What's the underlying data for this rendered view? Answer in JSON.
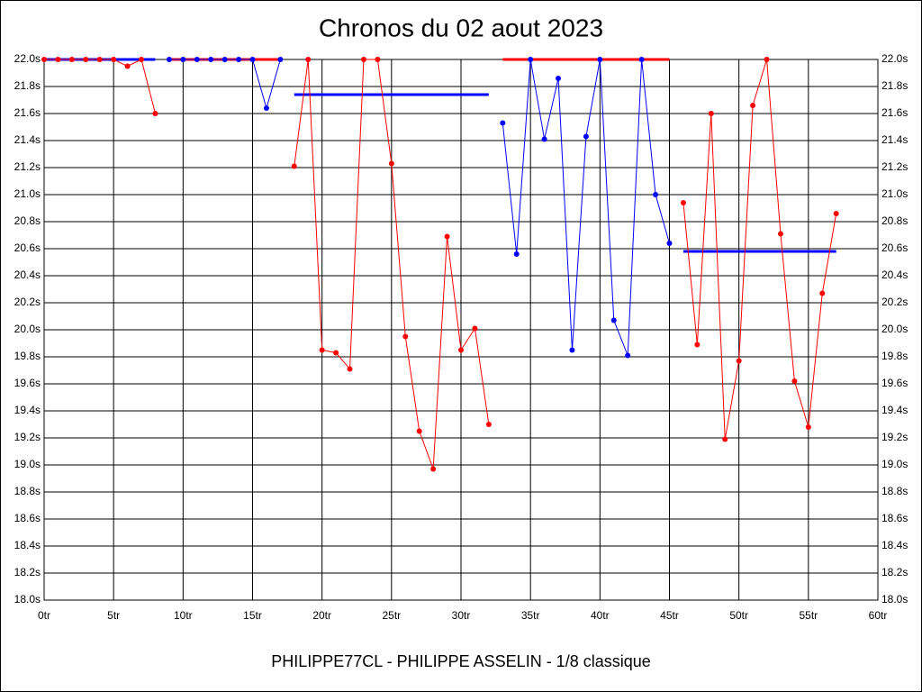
{
  "chart_data": {
    "type": "line",
    "title": "Chronos du 02 aout 2023",
    "x_label": "PHILIPPE77CL - PHILIPPE ASSELIN - 1/8 classique",
    "xlim": [
      0,
      60
    ],
    "xticks": [
      {
        "value": 0,
        "label": "0tr"
      },
      {
        "value": 5,
        "label": "5tr"
      },
      {
        "value": 10,
        "label": "10tr"
      },
      {
        "value": 15,
        "label": "15tr"
      },
      {
        "value": 20,
        "label": "20tr"
      },
      {
        "value": 25,
        "label": "25tr"
      },
      {
        "value": 30,
        "label": "30tr"
      },
      {
        "value": 35,
        "label": "35tr"
      },
      {
        "value": 40,
        "label": "40tr"
      },
      {
        "value": 45,
        "label": "45tr"
      },
      {
        "value": 50,
        "label": "50tr"
      },
      {
        "value": 55,
        "label": "55tr"
      },
      {
        "value": 60,
        "label": "60tr"
      }
    ],
    "ylim": [
      18.0,
      22.0
    ],
    "yticks": [
      {
        "value": 18.0,
        "label": "18.0s"
      },
      {
        "value": 18.2,
        "label": "18.2s"
      },
      {
        "value": 18.4,
        "label": "18.4s"
      },
      {
        "value": 18.6,
        "label": "18.6s"
      },
      {
        "value": 18.8,
        "label": "18.8s"
      },
      {
        "value": 19.0,
        "label": "19.0s"
      },
      {
        "value": 19.2,
        "label": "19.2s"
      },
      {
        "value": 19.4,
        "label": "19.4s"
      },
      {
        "value": 19.6,
        "label": "19.6s"
      },
      {
        "value": 19.8,
        "label": "19.8s"
      },
      {
        "value": 20.0,
        "label": "20.0s"
      },
      {
        "value": 20.2,
        "label": "20.2s"
      },
      {
        "value": 20.4,
        "label": "20.4s"
      },
      {
        "value": 20.6,
        "label": "20.6s"
      },
      {
        "value": 20.8,
        "label": "20.8s"
      },
      {
        "value": 21.0,
        "label": "21.0s"
      },
      {
        "value": 21.2,
        "label": "21.2s"
      },
      {
        "value": 21.4,
        "label": "21.4s"
      },
      {
        "value": 21.6,
        "label": "21.6s"
      },
      {
        "value": 21.8,
        "label": "21.8s"
      },
      {
        "value": 22.0,
        "label": "22.0s"
      }
    ],
    "grid": true,
    "series": [
      {
        "color": "#ff0000",
        "average_color": "#0000ff",
        "average": 22.0,
        "x": [
          0,
          1,
          2,
          3,
          4,
          5,
          6,
          7,
          8
        ],
        "values": [
          22.0,
          22.0,
          22.0,
          22.0,
          22.0,
          22.0,
          21.95,
          22.0,
          21.6
        ]
      },
      {
        "color": "#0000ff",
        "average_color": "#ff0000",
        "average": 22.0,
        "x": [
          9,
          10,
          11,
          12,
          13,
          14,
          15,
          16,
          17
        ],
        "values": [
          22.0,
          22.0,
          22.0,
          22.0,
          22.0,
          22.0,
          22.0,
          21.64,
          22.0
        ]
      },
      {
        "color": "#ff0000",
        "average_color": "#0000ff",
        "average": 21.74,
        "x": [
          18,
          19,
          20,
          21,
          22,
          23,
          24,
          25,
          26,
          27,
          28,
          29,
          30,
          31,
          32
        ],
        "values": [
          21.21,
          22.0,
          19.85,
          19.83,
          19.71,
          22.0,
          22.0,
          21.23,
          19.95,
          19.25,
          18.97,
          20.69,
          19.85,
          20.01,
          19.3
        ]
      },
      {
        "color": "#0000ff",
        "average_color": "#ff0000",
        "average": 22.0,
        "x": [
          33,
          34,
          35,
          36,
          37,
          38,
          39,
          40,
          41,
          42,
          43,
          44,
          45
        ],
        "values": [
          21.53,
          20.56,
          22.0,
          21.41,
          21.86,
          19.85,
          21.43,
          22.0,
          20.07,
          19.81,
          22.0,
          21.0,
          20.64
        ]
      },
      {
        "color": "#ff0000",
        "average_color": "#0000ff",
        "average": 20.58,
        "x": [
          46,
          47,
          48,
          49,
          50,
          51,
          52,
          53,
          54,
          55,
          56,
          57
        ],
        "values": [
          20.94,
          19.89,
          21.6,
          19.19,
          19.77,
          21.66,
          22.0,
          20.71,
          19.62,
          19.28,
          20.27,
          20.86
        ]
      }
    ]
  }
}
